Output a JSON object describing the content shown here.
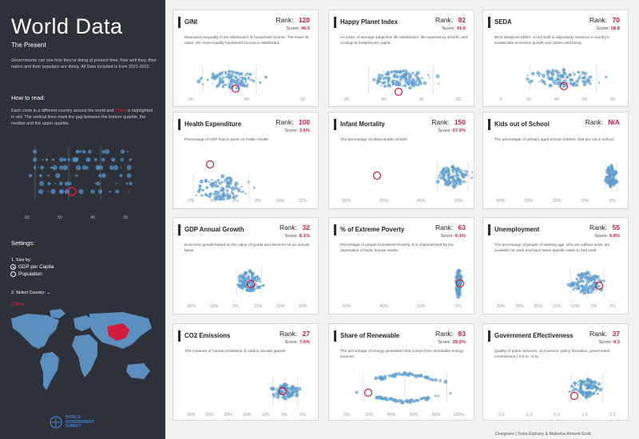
{
  "sidebar": {
    "title": "World Data",
    "subtitle": "The Present",
    "intro": "Governments can see how they're doing at present time, how well they, their nation and their populace are doing. All Data included is from 2021-2022.",
    "howto_head": "How to read:",
    "howto_1": "Each circle is a different country around the world and ",
    "howto_red": "China",
    "howto_2": " is highlighted in red. The vertical lines mark the gap between the bottom quartile, the median and the upper quartile.",
    "howto_ticks": [
      "60",
      "50",
      "40",
      "30"
    ],
    "settings_head": "Settings:",
    "size_by_label": "1. Size by:",
    "size_options": [
      "GDP per Capita",
      "Population"
    ],
    "select_country_label": "2. Select Country:",
    "selected_country": "China",
    "logo_text": [
      "WORLD",
      "GOVERNMENT",
      "SUMMIT"
    ]
  },
  "credit": "Designers | Soha Elghany & Maleeha Ahmed-Scott",
  "highlight_color": "#d11d3b",
  "dot_color": "#5f9fcf",
  "cards": [
    {
      "id": "gini",
      "title": "GINI",
      "rank": "120",
      "score": "46.5",
      "desc": "Measures inequality in the distribution of household income. The lower its value, the more equally household income is distributed.",
      "ticks": [
        "30",
        "40",
        "50"
      ]
    },
    {
      "id": "hpi",
      "title": "Happy Planet Index",
      "rank": "92",
      "score": "41.9",
      "desc": "An index of average subjective life satisfaction, life expectancy at birth, and ecological footprint per capita.",
      "ticks": [
        "30",
        "40",
        "50",
        "60"
      ]
    },
    {
      "id": "seda",
      "title": "SEDA",
      "rank": "70",
      "score": "58.8",
      "desc": "BCG designed SEDA, a tool built to objectively measure a country's sustainable economic growth and citizen well being.",
      "ticks": [
        "0",
        "20",
        "40",
        "60",
        "80"
      ]
    },
    {
      "id": "health",
      "title": "Health Expenditure",
      "rank": "100",
      "score": "3.6%",
      "desc": "Percentage of GDP that is spent on Public Health",
      "ticks": [
        "2%",
        "4%",
        "6%",
        "8%",
        "10%",
        "12%"
      ]
    },
    {
      "id": "infant",
      "title": "Infant Mortality",
      "rank": "150",
      "score": "57.9%",
      "desc": "The percentage of infant deaths at birth",
      "ticks": [
        "80%",
        "60%",
        "40%",
        "20%"
      ]
    },
    {
      "id": "kids",
      "title": "Kids out of School",
      "rank": "N/A",
      "score": "",
      "desc": "The percentage of primary aged school children, that are not in school",
      "ticks": [
        "40%",
        "30%",
        "20%",
        "10%",
        "0%"
      ]
    },
    {
      "id": "gdp",
      "title": "GDP Annual Growth",
      "rank": "32",
      "score": "8.1%",
      "desc": "Economic growth based on the value of goods and services on an annual basis",
      "ticks": [
        "-20%",
        "-10%",
        "0%",
        "10%",
        "20%",
        "30%"
      ]
    },
    {
      "id": "poverty",
      "title": "% of Extreme Poverty",
      "rank": "63",
      "score": "0.1%",
      "desc": "Percentage of people in Extreme Poverty. It is characterised by the deprivation of basic human needs.",
      "ticks": [
        "60%",
        "40%",
        "20%",
        "0%"
      ]
    },
    {
      "id": "unemp",
      "title": "Unemployment",
      "rank": "55",
      "score": "4.8%",
      "desc": "The percentage of people of working age, who are without work, are available for work and have taken specific steps to find work.",
      "ticks": [
        "30%",
        "25%",
        "20%",
        "15%",
        "10%",
        "5%",
        "0%"
      ]
    },
    {
      "id": "co2",
      "title": "CO2 Emissions",
      "rank": "27",
      "score": "7.6%",
      "desc": "The measure of human emissions of carbon dioxide gasses",
      "ticks": [
        "30%",
        "25%",
        "20%",
        "15%",
        "10%",
        "5%",
        "0%"
      ]
    },
    {
      "id": "renew",
      "title": "Share of Renewable",
      "rank": "83",
      "score": "29.2%",
      "desc": "The percentage of energy generation that comes from renewable energy sources.",
      "ticks": [
        "0%",
        "20%",
        "40%",
        "60%",
        "80%",
        "100%"
      ]
    },
    {
      "id": "gov",
      "title": "Government Effectiveness",
      "rank": "37",
      "score": "0.3",
      "desc": "Quality of public services, civil service, policy formation, government commitment (-2.5 to +2.5).",
      "ticks": [
        "-2.0",
        "-1.0",
        "0.0",
        "1.0",
        "2.0"
      ]
    }
  ]
}
